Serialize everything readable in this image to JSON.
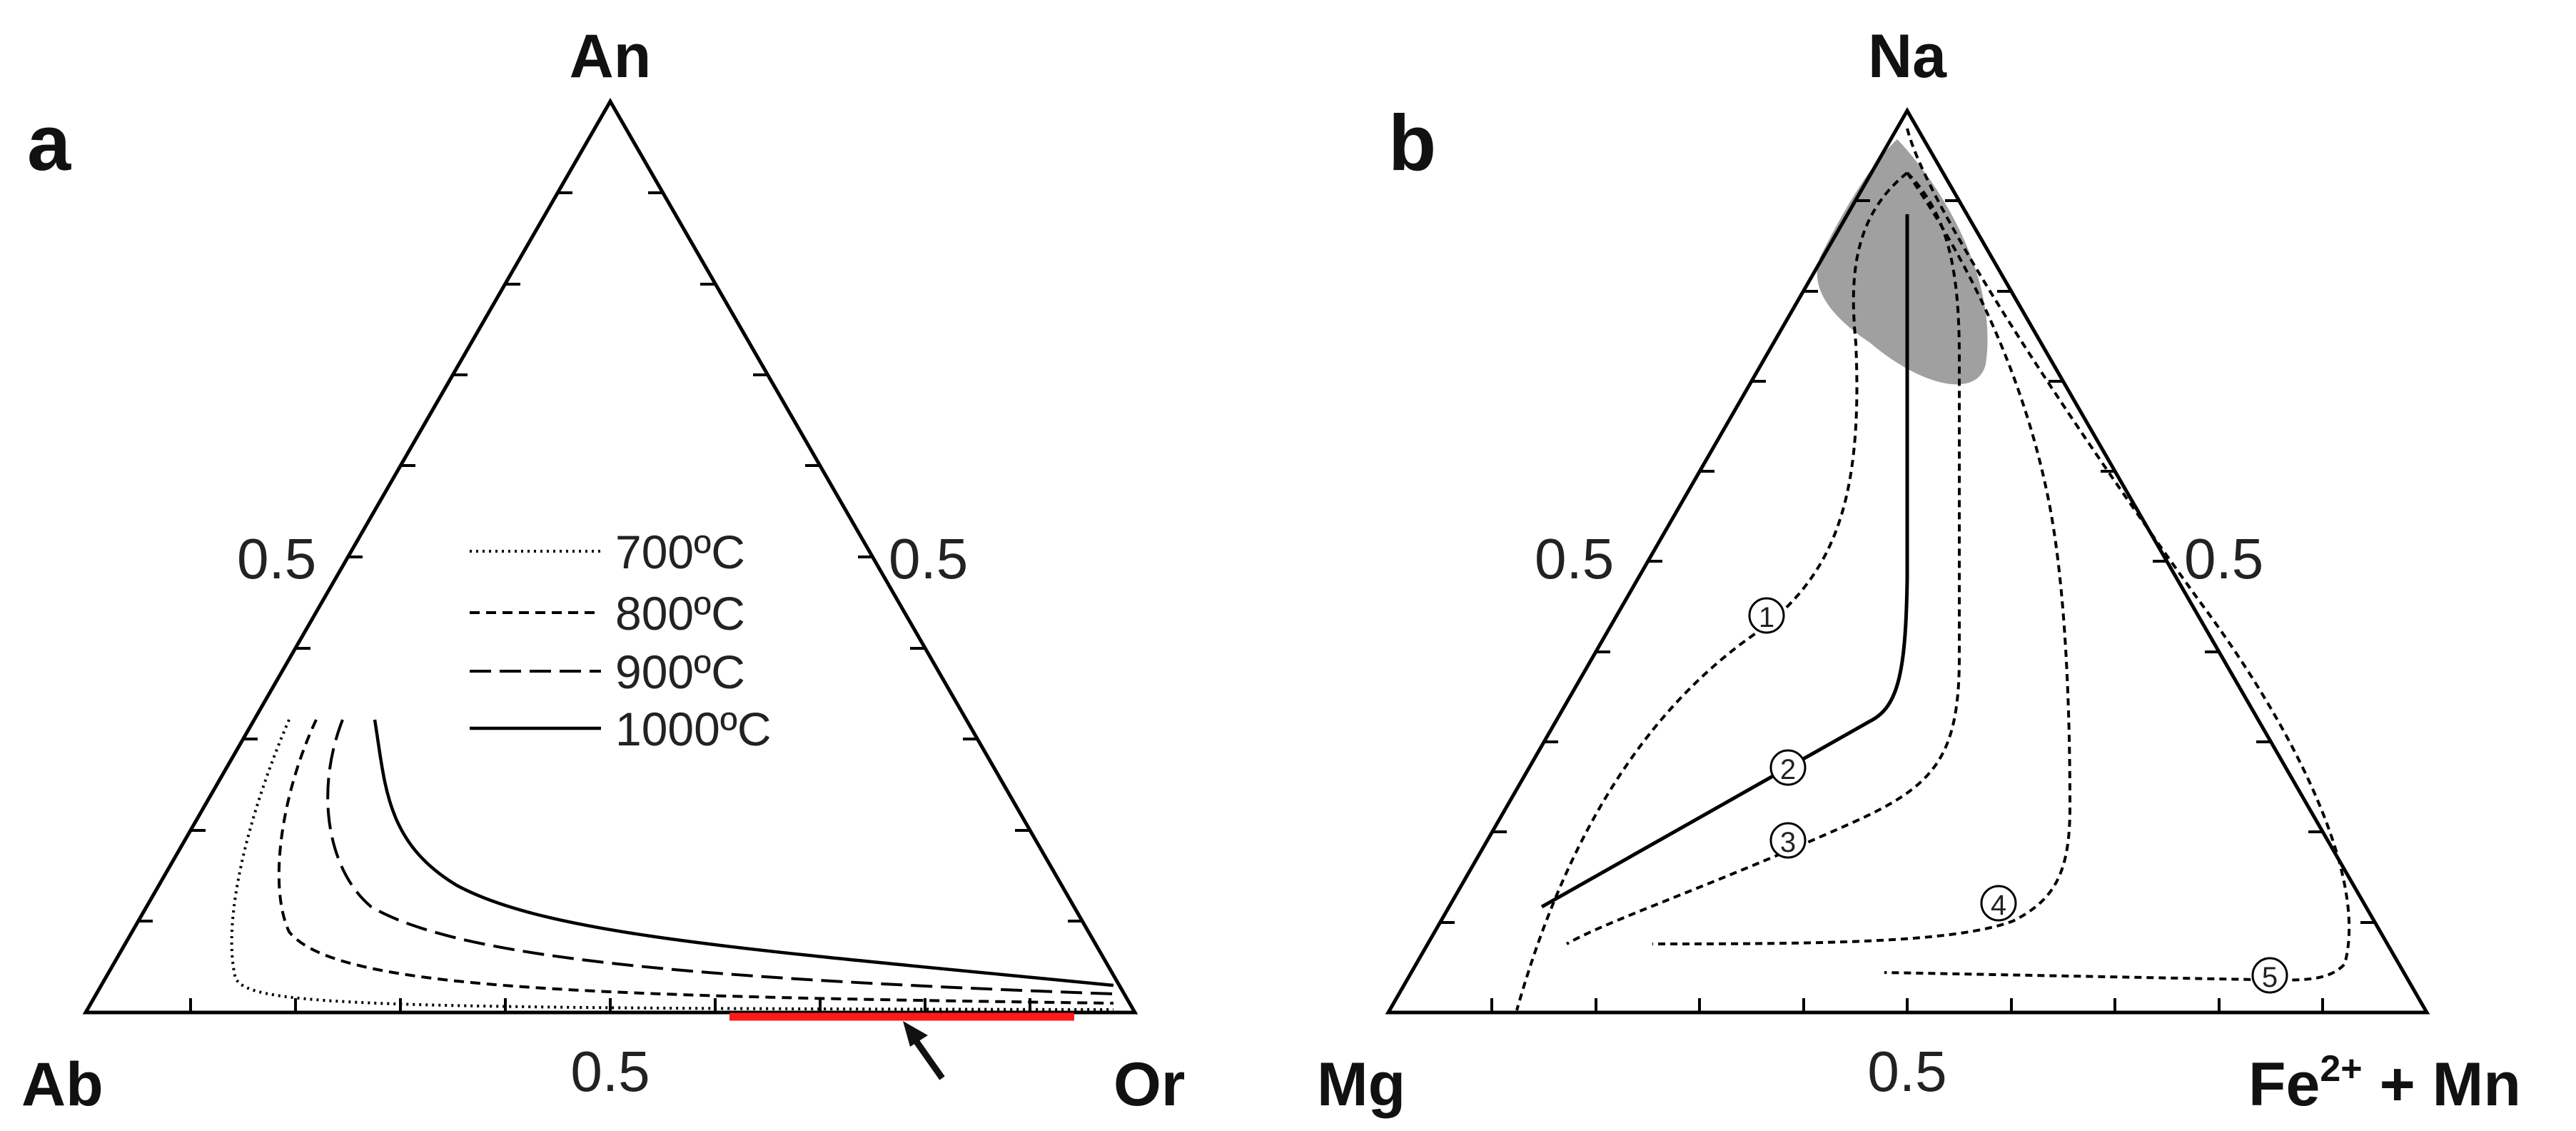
{
  "panel_a": {
    "panel_letter": "a",
    "apex_top": "An",
    "apex_left": "Ab",
    "apex_right": "Or",
    "tick_left_edge": "0.5",
    "tick_right_edge": "0.5",
    "tick_base": "0.5",
    "legend": [
      {
        "label": "700ºC",
        "style": "dotted"
      },
      {
        "label": "800ºC",
        "style": "short-dash"
      },
      {
        "label": "900ºC",
        "style": "long-dash"
      },
      {
        "label": "1000ºC",
        "style": "solid"
      }
    ],
    "highlight_color": "#ff1a1a",
    "arrow_color": "#111111"
  },
  "panel_b": {
    "panel_letter": "b",
    "apex_top": "Na",
    "apex_left": "Mg",
    "apex_right_main": "Fe",
    "apex_right_sup": "2+",
    "apex_right_tail": " + Mn",
    "tick_left_edge": "0.5",
    "tick_right_edge": "0.5",
    "tick_base": "0.5",
    "field_color": "#a0a0a0",
    "curve_markers": [
      "1",
      "2",
      "3",
      "4",
      "5"
    ]
  }
}
